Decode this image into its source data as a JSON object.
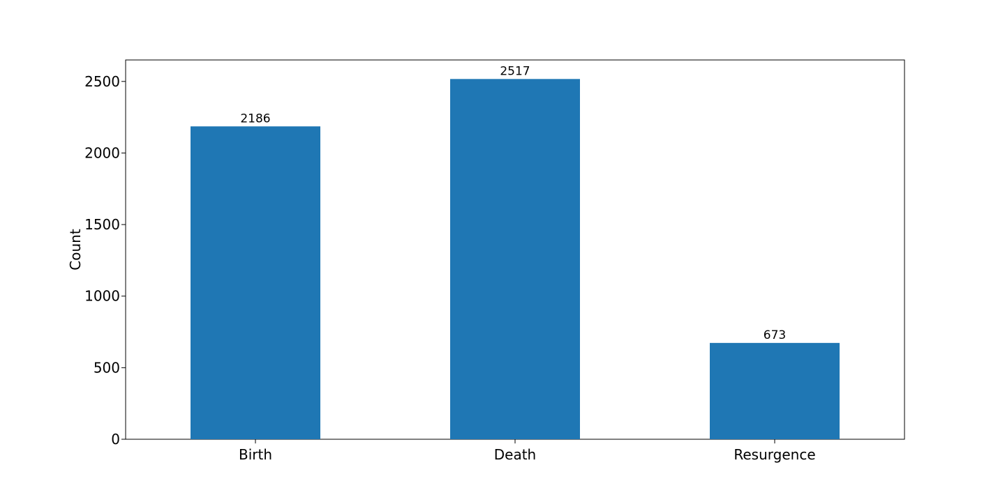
{
  "chart_data": {
    "type": "bar",
    "title": "",
    "xlabel": "",
    "ylabel": "Count",
    "categories": [
      "Birth",
      "Death",
      "Resurgence"
    ],
    "values": [
      2186,
      2517,
      673
    ],
    "ylim": [
      0,
      2650
    ],
    "yticks": [
      0,
      500,
      1000,
      1500,
      2000,
      2500
    ],
    "grid": false,
    "legend": "none",
    "show_data_labels": true,
    "colors": {
      "bar": "#1f77b4",
      "axes": "#000000",
      "background": "#ffffff"
    }
  }
}
